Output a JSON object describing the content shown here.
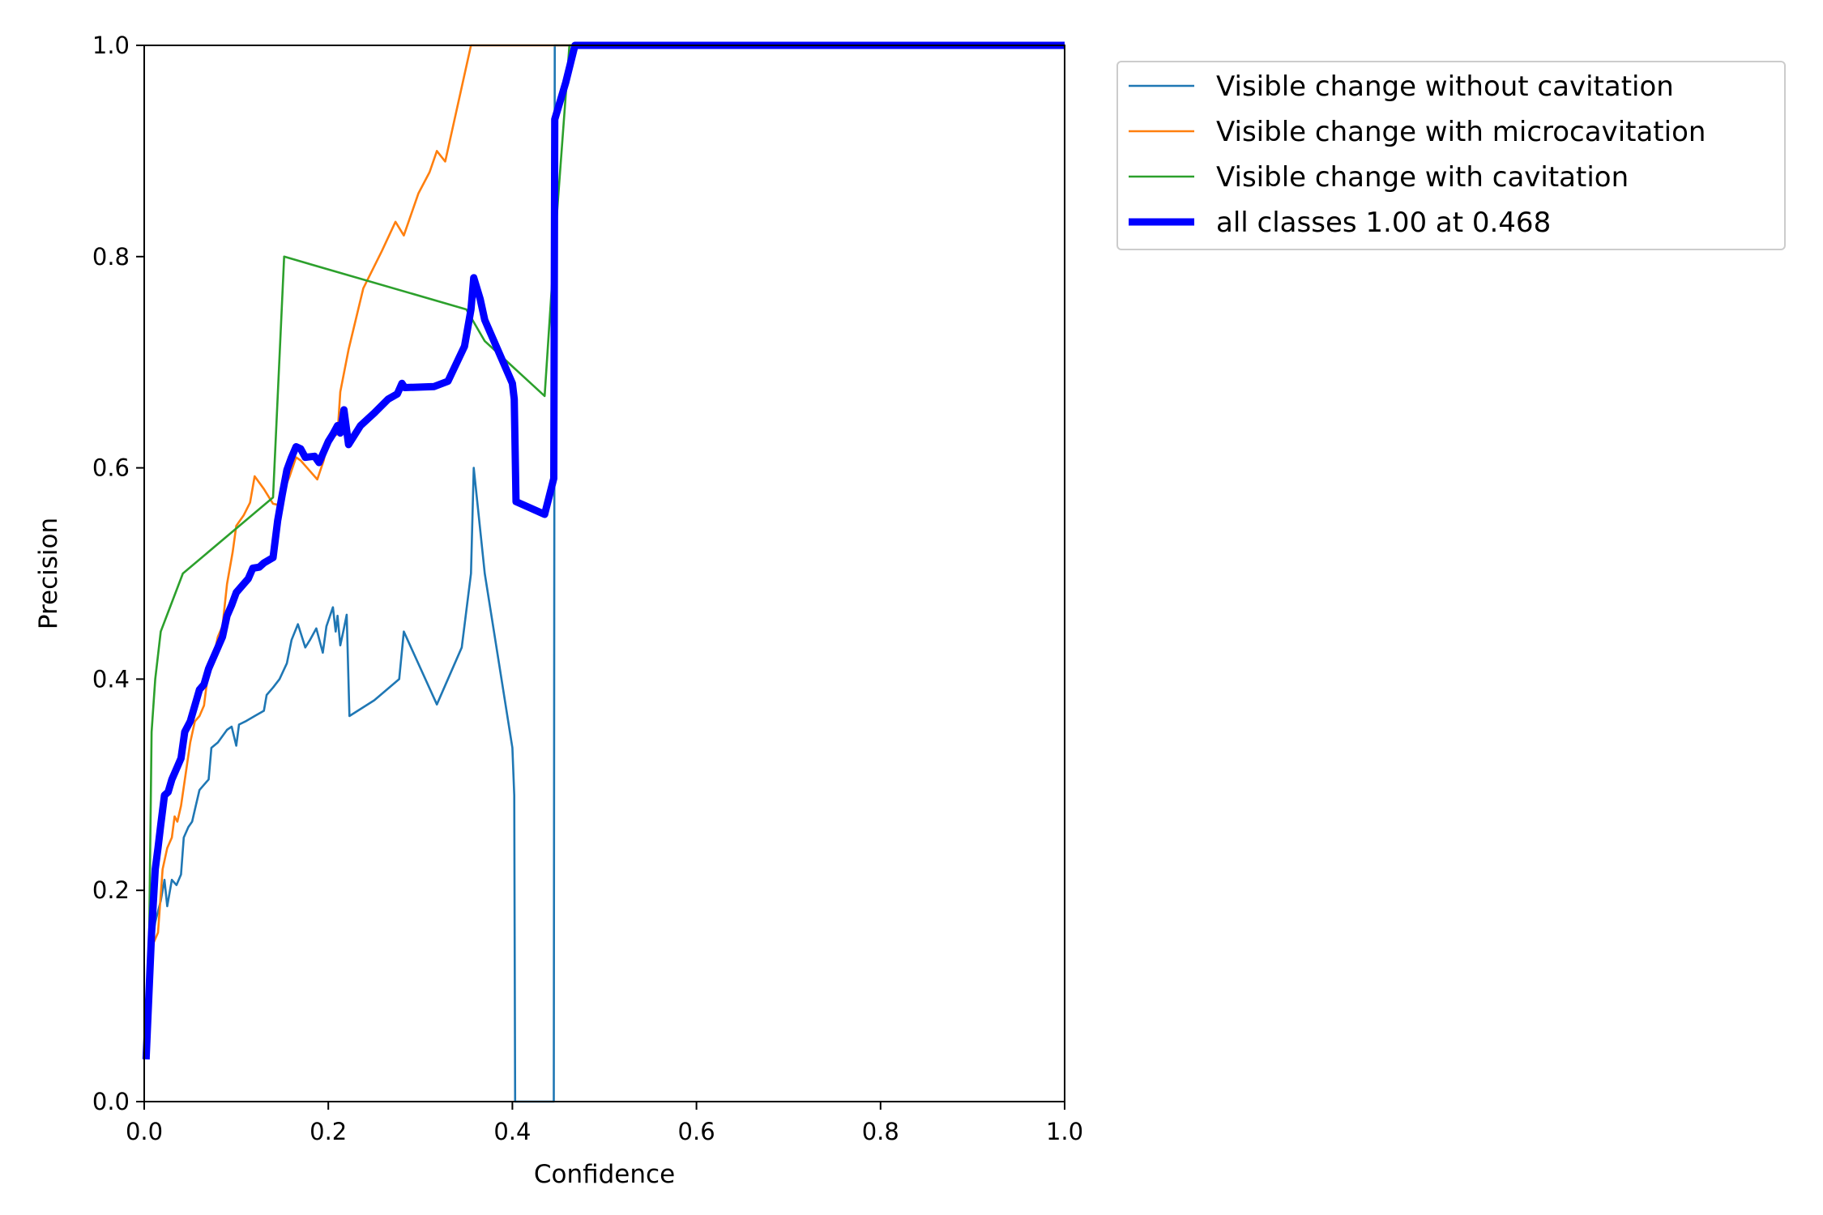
{
  "chart_data": {
    "type": "line",
    "title": "",
    "xlabel": "Confidence",
    "ylabel": "Precision",
    "xlim": [
      0.0,
      1.0
    ],
    "ylim": [
      0.0,
      1.0
    ],
    "xticks": [
      "0.0",
      "0.2",
      "0.4",
      "0.6",
      "0.8",
      "1.0"
    ],
    "yticks": [
      "0.0",
      "0.2",
      "0.4",
      "0.6",
      "0.8",
      "1.0"
    ],
    "grid": false,
    "legend_position": "outside-top-right",
    "series": [
      {
        "name": "Visible change without cavitation",
        "color": "#1f77b4",
        "width": "thin",
        "points": [
          [
            0.005,
            0.13
          ],
          [
            0.012,
            0.17
          ],
          [
            0.018,
            0.19
          ],
          [
            0.022,
            0.21
          ],
          [
            0.025,
            0.185
          ],
          [
            0.03,
            0.21
          ],
          [
            0.035,
            0.205
          ],
          [
            0.04,
            0.215
          ],
          [
            0.043,
            0.25
          ],
          [
            0.048,
            0.26
          ],
          [
            0.052,
            0.265
          ],
          [
            0.056,
            0.28
          ],
          [
            0.06,
            0.295
          ],
          [
            0.065,
            0.3
          ],
          [
            0.07,
            0.305
          ],
          [
            0.073,
            0.335
          ],
          [
            0.08,
            0.34
          ],
          [
            0.09,
            0.352
          ],
          [
            0.095,
            0.355
          ],
          [
            0.1,
            0.337
          ],
          [
            0.103,
            0.357
          ],
          [
            0.11,
            0.36
          ],
          [
            0.12,
            0.365
          ],
          [
            0.13,
            0.37
          ],
          [
            0.133,
            0.385
          ],
          [
            0.14,
            0.392
          ],
          [
            0.147,
            0.4
          ],
          [
            0.155,
            0.415
          ],
          [
            0.16,
            0.437
          ],
          [
            0.167,
            0.452
          ],
          [
            0.175,
            0.43
          ],
          [
            0.18,
            0.437
          ],
          [
            0.187,
            0.448
          ],
          [
            0.194,
            0.425
          ],
          [
            0.198,
            0.45
          ],
          [
            0.205,
            0.468
          ],
          [
            0.208,
            0.445
          ],
          [
            0.21,
            0.46
          ],
          [
            0.213,
            0.432
          ],
          [
            0.217,
            0.448
          ],
          [
            0.22,
            0.461
          ],
          [
            0.223,
            0.365
          ],
          [
            0.25,
            0.38
          ],
          [
            0.277,
            0.4
          ],
          [
            0.282,
            0.445
          ],
          [
            0.318,
            0.376
          ],
          [
            0.345,
            0.43
          ],
          [
            0.355,
            0.5
          ],
          [
            0.358,
            0.6
          ],
          [
            0.37,
            0.5
          ],
          [
            0.4,
            0.335
          ],
          [
            0.402,
            0.29
          ],
          [
            0.403,
            0.0
          ],
          [
            0.445,
            0.0
          ],
          [
            0.446,
            1.0
          ],
          [
            1.0,
            1.0
          ]
        ]
      },
      {
        "name": "Visible change with microcavitation",
        "color": "#ff7f0e",
        "width": "thin",
        "points": [
          [
            0.005,
            0.13
          ],
          [
            0.01,
            0.15
          ],
          [
            0.015,
            0.16
          ],
          [
            0.02,
            0.22
          ],
          [
            0.025,
            0.24
          ],
          [
            0.03,
            0.25
          ],
          [
            0.033,
            0.27
          ],
          [
            0.036,
            0.265
          ],
          [
            0.04,
            0.28
          ],
          [
            0.045,
            0.31
          ],
          [
            0.05,
            0.34
          ],
          [
            0.055,
            0.36
          ],
          [
            0.06,
            0.365
          ],
          [
            0.065,
            0.375
          ],
          [
            0.07,
            0.41
          ],
          [
            0.075,
            0.42
          ],
          [
            0.08,
            0.44
          ],
          [
            0.085,
            0.45
          ],
          [
            0.09,
            0.49
          ],
          [
            0.096,
            0.52
          ],
          [
            0.1,
            0.545
          ],
          [
            0.108,
            0.555
          ],
          [
            0.115,
            0.567
          ],
          [
            0.12,
            0.592
          ],
          [
            0.13,
            0.58
          ],
          [
            0.14,
            0.566
          ],
          [
            0.145,
            0.565
          ],
          [
            0.15,
            0.575
          ],
          [
            0.158,
            0.592
          ],
          [
            0.165,
            0.61
          ],
          [
            0.17,
            0.607
          ],
          [
            0.188,
            0.589
          ],
          [
            0.195,
            0.607
          ],
          [
            0.2,
            0.627
          ],
          [
            0.21,
            0.632
          ],
          [
            0.213,
            0.672
          ],
          [
            0.222,
            0.712
          ],
          [
            0.238,
            0.77
          ],
          [
            0.258,
            0.805
          ],
          [
            0.273,
            0.833
          ],
          [
            0.282,
            0.82
          ],
          [
            0.298,
            0.86
          ],
          [
            0.31,
            0.88
          ],
          [
            0.318,
            0.9
          ],
          [
            0.327,
            0.89
          ],
          [
            0.355,
            1.0
          ],
          [
            1.0,
            1.0
          ]
        ]
      },
      {
        "name": "Visible change with cavitation",
        "color": "#2ca02c",
        "width": "thin",
        "points": [
          [
            0.005,
            0.13
          ],
          [
            0.008,
            0.35
          ],
          [
            0.012,
            0.4
          ],
          [
            0.018,
            0.445
          ],
          [
            0.042,
            0.5
          ],
          [
            0.14,
            0.572
          ],
          [
            0.152,
            0.8
          ],
          [
            0.35,
            0.75
          ],
          [
            0.37,
            0.72
          ],
          [
            0.435,
            0.668
          ],
          [
            0.445,
            0.8
          ],
          [
            0.462,
            1.0
          ],
          [
            1.0,
            1.0
          ]
        ]
      },
      {
        "name": "all classes 1.00 at 0.468",
        "color": "#0000ff",
        "width": "thick",
        "points": [
          [
            0.002,
            0.04
          ],
          [
            0.005,
            0.1
          ],
          [
            0.008,
            0.16
          ],
          [
            0.012,
            0.22
          ],
          [
            0.015,
            0.24
          ],
          [
            0.018,
            0.262
          ],
          [
            0.022,
            0.29
          ],
          [
            0.026,
            0.293
          ],
          [
            0.03,
            0.305
          ],
          [
            0.035,
            0.315
          ],
          [
            0.04,
            0.325
          ],
          [
            0.044,
            0.35
          ],
          [
            0.05,
            0.36
          ],
          [
            0.055,
            0.375
          ],
          [
            0.06,
            0.39
          ],
          [
            0.065,
            0.395
          ],
          [
            0.07,
            0.41
          ],
          [
            0.075,
            0.42
          ],
          [
            0.08,
            0.43
          ],
          [
            0.085,
            0.44
          ],
          [
            0.09,
            0.46
          ],
          [
            0.095,
            0.47
          ],
          [
            0.1,
            0.482
          ],
          [
            0.108,
            0.49
          ],
          [
            0.113,
            0.495
          ],
          [
            0.118,
            0.505
          ],
          [
            0.125,
            0.506
          ],
          [
            0.13,
            0.51
          ],
          [
            0.14,
            0.515
          ],
          [
            0.145,
            0.55
          ],
          [
            0.15,
            0.575
          ],
          [
            0.155,
            0.598
          ],
          [
            0.16,
            0.61
          ],
          [
            0.165,
            0.62
          ],
          [
            0.17,
            0.618
          ],
          [
            0.175,
            0.61
          ],
          [
            0.185,
            0.611
          ],
          [
            0.19,
            0.605
          ],
          [
            0.195,
            0.615
          ],
          [
            0.2,
            0.625
          ],
          [
            0.205,
            0.632
          ],
          [
            0.21,
            0.64
          ],
          [
            0.213,
            0.633
          ],
          [
            0.217,
            0.655
          ],
          [
            0.222,
            0.622
          ],
          [
            0.235,
            0.64
          ],
          [
            0.25,
            0.652
          ],
          [
            0.265,
            0.665
          ],
          [
            0.275,
            0.67
          ],
          [
            0.28,
            0.68
          ],
          [
            0.283,
            0.676
          ],
          [
            0.315,
            0.677
          ],
          [
            0.33,
            0.682
          ],
          [
            0.348,
            0.715
          ],
          [
            0.355,
            0.75
          ],
          [
            0.358,
            0.78
          ],
          [
            0.365,
            0.76
          ],
          [
            0.37,
            0.74
          ],
          [
            0.4,
            0.68
          ],
          [
            0.402,
            0.665
          ],
          [
            0.404,
            0.568
          ],
          [
            0.435,
            0.556
          ],
          [
            0.445,
            0.59
          ],
          [
            0.446,
            0.93
          ],
          [
            0.458,
            0.965
          ],
          [
            0.468,
            1.0
          ],
          [
            1.0,
            1.0
          ]
        ]
      }
    ]
  }
}
